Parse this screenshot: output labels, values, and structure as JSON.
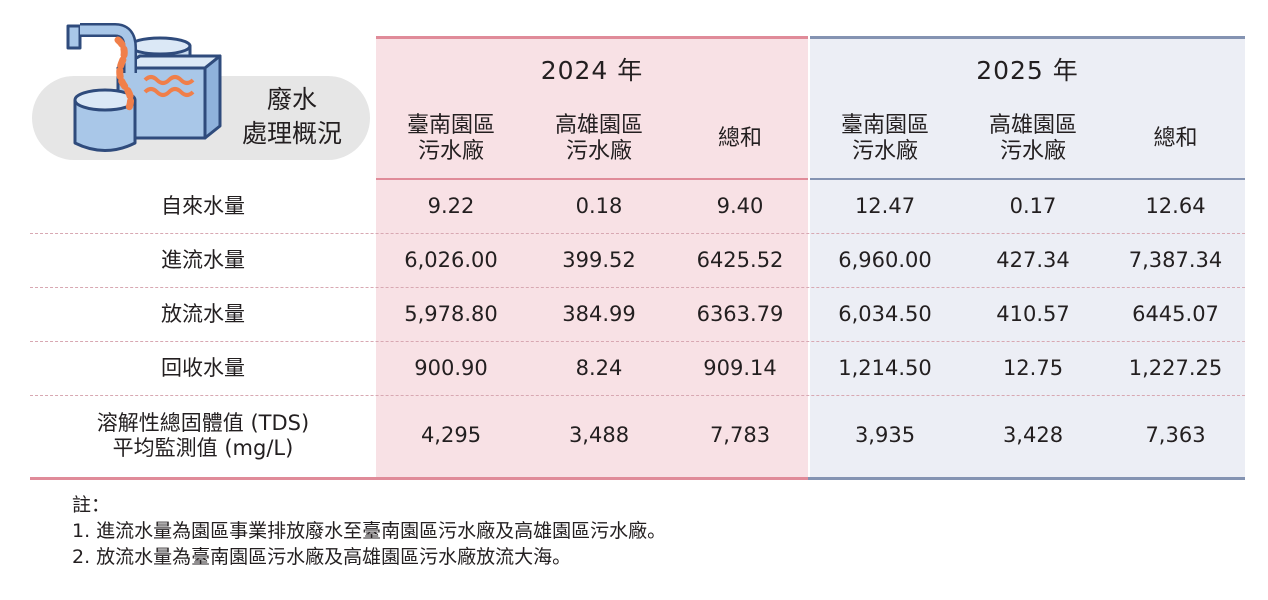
{
  "title_lines": [
    "廢水",
    "處理概況"
  ],
  "years": [
    "2024 年",
    "2025 年"
  ],
  "sub_headers": [
    "臺南園區\n污水廠",
    "高雄園區\n污水廠",
    "總和",
    "臺南園區\n污水廠",
    "高雄園區\n污水廠",
    "總和"
  ],
  "rows": [
    {
      "label": "自來水量",
      "values": [
        "9.22",
        "0.18",
        "9.40",
        "12.47",
        "0.17",
        "12.64"
      ]
    },
    {
      "label": "進流水量",
      "values": [
        "6,026.00",
        "399.52",
        "6425.52",
        "6,960.00",
        "427.34",
        "7,387.34"
      ]
    },
    {
      "label": "放流水量",
      "values": [
        "5,978.80",
        "384.99",
        "6363.79",
        "6,034.50",
        "410.57",
        "6445.07"
      ]
    },
    {
      "label": "回收水量",
      "values": [
        "900.90",
        "8.24",
        "909.14",
        "1,214.50",
        "12.75",
        "1,227.25"
      ]
    },
    {
      "label": "溶解性總固體值 (TDS)\n平均監測值 (mg/L)",
      "values": [
        "4,295",
        "3,488",
        "7,783",
        "3,935",
        "3,428",
        "7,363"
      ]
    }
  ],
  "notes": {
    "heading": "註：",
    "items": [
      "1. 進流水量為園區事業排放廢水至臺南園區污水廠及高雄園區污水廠。",
      "2. 放流水量為臺南園區污水廠及高雄園區污水廠放流大海。"
    ]
  },
  "colors": {
    "accent_2024": "#e08b99",
    "bg_2024": "#f8e1e5",
    "accent_2025": "#8493b2",
    "bg_2025": "#eceef5",
    "icon_blue": "#a9c7e8",
    "icon_orange": "#f07f4a",
    "label_pill": "#e6e6e6"
  },
  "icon": "wastewater-treatment-icon"
}
